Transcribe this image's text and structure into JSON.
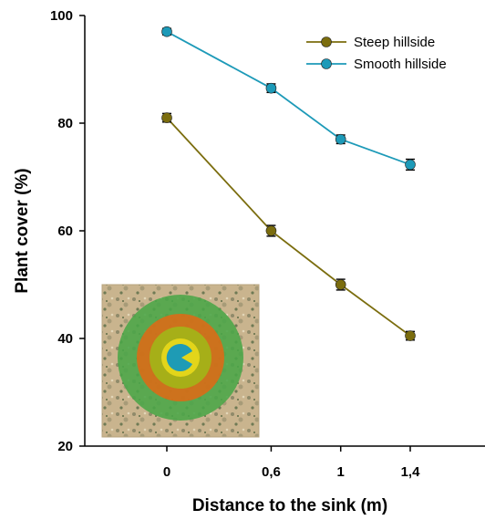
{
  "chart_data": {
    "type": "line",
    "xlabel": "Distance to the sink (m)",
    "ylabel": "Plant cover (%)",
    "x": [
      0,
      0.6,
      1,
      1.4
    ],
    "x_tick_labels": [
      "0",
      "0,6",
      "1",
      "1,4"
    ],
    "ylim": [
      20,
      100
    ],
    "y_ticks": [
      20,
      40,
      60,
      80,
      100
    ],
    "grid": false,
    "legend_position": "top-right",
    "series": [
      {
        "name": "Steep hillside",
        "color": "#7b6d0e",
        "values": [
          81,
          60,
          50,
          40.5
        ],
        "errors": [
          0.8,
          1.0,
          1.0,
          0.8
        ]
      },
      {
        "name": "Smooth hillside",
        "color": "#1d9ab8",
        "values": [
          97,
          86.5,
          77,
          72.3
        ],
        "errors": [
          0.6,
          0.8,
          0.8,
          1.0
        ]
      }
    ]
  },
  "inset": {
    "description_icon": "vegetation-rings-photo"
  }
}
